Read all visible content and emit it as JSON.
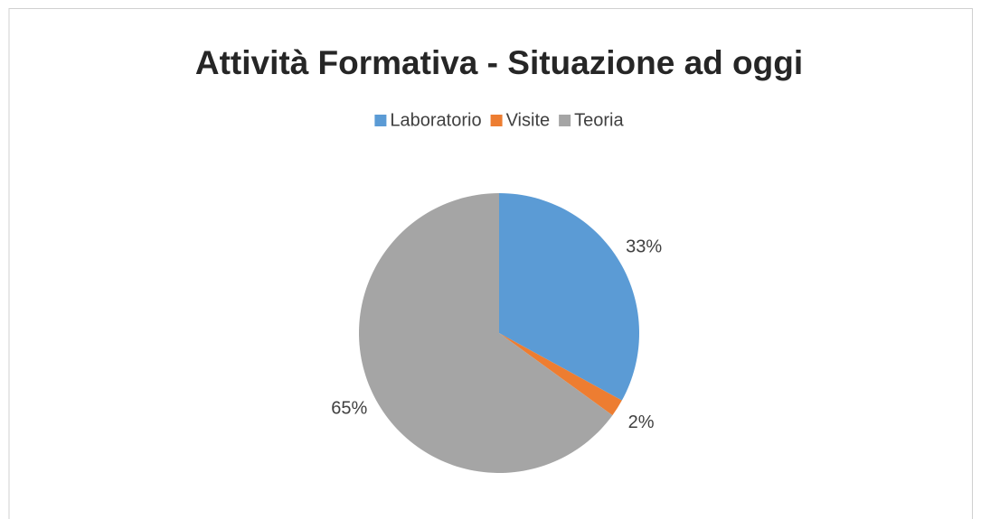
{
  "chart_data": {
    "type": "pie",
    "title": "Attività Formativa - Situazione ad oggi",
    "categories": [
      "Laboratorio",
      "Visite",
      "Teoria"
    ],
    "values": [
      33,
      2,
      65
    ],
    "value_labels": [
      "33%",
      "2%",
      "65%"
    ],
    "colors": [
      "#5b9bd5",
      "#ed7d31",
      "#a5a5a5"
    ],
    "legend": "top"
  }
}
